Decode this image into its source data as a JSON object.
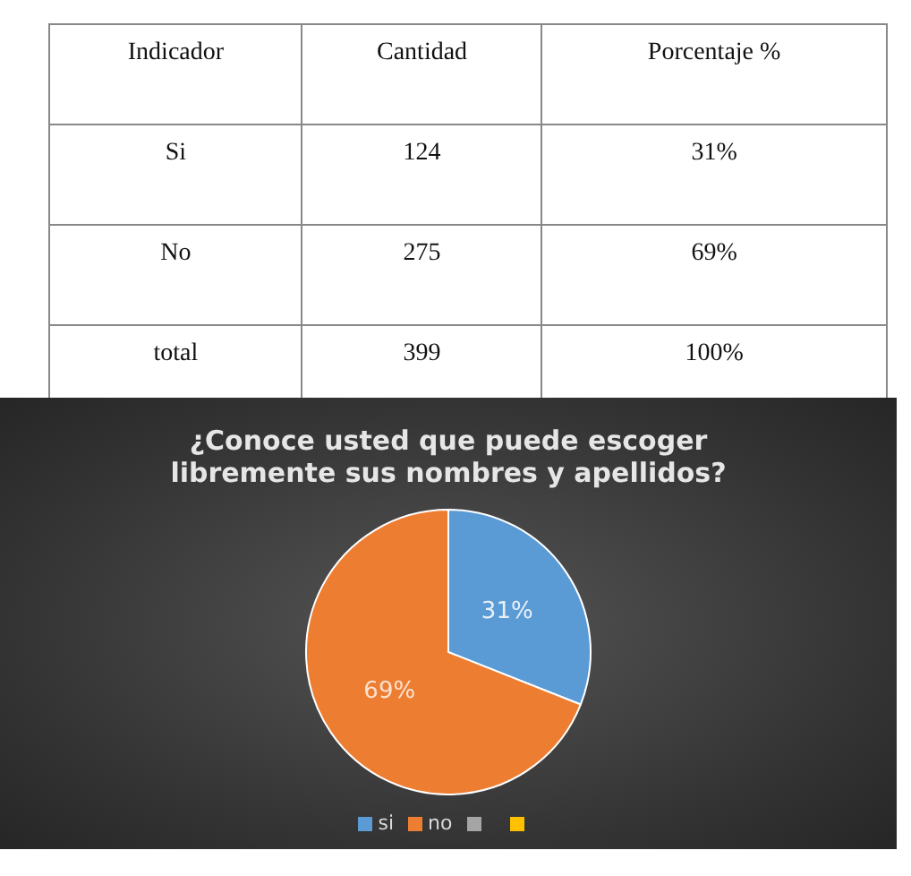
{
  "chart_data": [
    {
      "type": "other",
      "annotations": [
        "Indicador",
        "Cantidad",
        "Porcentaje %",
        "Si",
        "124",
        "31%",
        "No",
        "275",
        "69%",
        "total",
        "399",
        "100%"
      ]
    },
    {
      "type": "pie",
      "title": "¿Conoce usted que puede escoger libremente sus nombres y apellidos?",
      "categories": [
        "si",
        "no",
        null,
        null
      ],
      "values": [
        31,
        69,
        null,
        null
      ],
      "colors": [
        "#5b9bd5",
        "#ed7d31",
        "#a5a5a5",
        "#ffc000"
      ],
      "value_labels": [
        "31%",
        "69%",
        null,
        null
      ],
      "legend": "bottom"
    }
  ]
}
